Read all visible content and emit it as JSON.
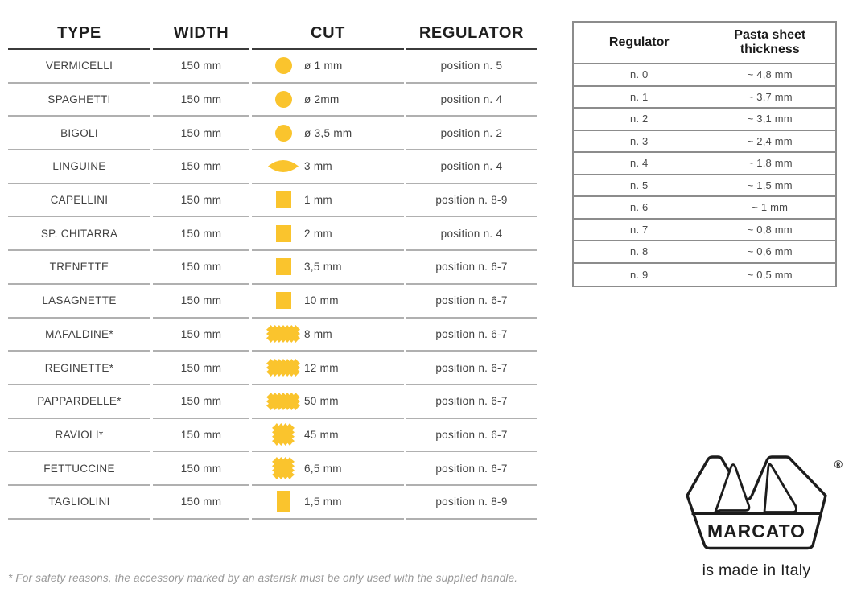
{
  "colors": {
    "accent_yellow": "#FAC42D",
    "header_line": "#3b3b3b",
    "row_line": "#b0b0b0",
    "reg_table_border": "#8c8c8c"
  },
  "main_table": {
    "headers": [
      "TYPE",
      "WIDTH",
      "CUT",
      "REGULATOR"
    ],
    "rows": [
      {
        "type": "VERMICELLI",
        "width": "150 mm",
        "icon": "circle",
        "cut": "ø 1 mm",
        "regulator": "position n. 5"
      },
      {
        "type": "SPAGHETTI",
        "width": "150 mm",
        "icon": "circle",
        "cut": "ø 2mm",
        "regulator": "position n. 4"
      },
      {
        "type": "BIGOLI",
        "width": "150 mm",
        "icon": "circle",
        "cut": "ø 3,5 mm",
        "regulator": "position n. 2"
      },
      {
        "type": "LINGUINE",
        "width": "150 mm",
        "icon": "lens",
        "cut": "3 mm",
        "regulator": "position n. 4"
      },
      {
        "type": "CAPELLINI",
        "width": "150 mm",
        "icon": "square",
        "cut": "1 mm",
        "regulator": "position n. 8-9"
      },
      {
        "type": "SP. CHITARRA",
        "width": "150 mm",
        "icon": "square",
        "cut": "2 mm",
        "regulator": "position n. 4"
      },
      {
        "type": "TRENETTE",
        "width": "150 mm",
        "icon": "square",
        "cut": "3,5 mm",
        "regulator": "position n. 6-7"
      },
      {
        "type": "LASAGNETTE",
        "width": "150 mm",
        "icon": "square",
        "cut": "10 mm",
        "regulator": "position n. 6-7"
      },
      {
        "type": "MAFALDINE*",
        "width": "150 mm",
        "icon": "ribbon-zigzag",
        "cut": "8 mm",
        "regulator": "position n. 6-7"
      },
      {
        "type": "REGINETTE*",
        "width": "150 mm",
        "icon": "ribbon-zigzag",
        "cut": "12 mm",
        "regulator": "position n. 6-7"
      },
      {
        "type": "PAPPARDELLE*",
        "width": "150 mm",
        "icon": "ribbon-zigzag",
        "cut": "50 mm",
        "regulator": "position n. 6-7"
      },
      {
        "type": "RAVIOLI*",
        "width": "150 mm",
        "icon": "square-zigzag",
        "cut": "45 mm",
        "regulator": "position n. 6-7"
      },
      {
        "type": "FETTUCCINE",
        "width": "150 mm",
        "icon": "square-zigzag",
        "cut": "6,5 mm",
        "regulator": "position n. 6-7"
      },
      {
        "type": "TAGLIOLINI",
        "width": "150 mm",
        "icon": "rect-tall",
        "cut": "1,5 mm",
        "regulator": "position n. 8-9"
      }
    ]
  },
  "regulator_table": {
    "headers": [
      "Regulator",
      "Pasta sheet\nthickness"
    ],
    "rows": [
      {
        "regulator": "n. 0",
        "thickness": "~ 4,8 mm"
      },
      {
        "regulator": "n. 1",
        "thickness": "~ 3,7 mm"
      },
      {
        "regulator": "n. 2",
        "thickness": "~ 3,1 mm"
      },
      {
        "regulator": "n. 3",
        "thickness": "~ 2,4 mm"
      },
      {
        "regulator": "n. 4",
        "thickness": "~ 1,8 mm"
      },
      {
        "regulator": "n. 5",
        "thickness": "~ 1,5 mm"
      },
      {
        "regulator": "n. 6",
        "thickness": "~ 1 mm"
      },
      {
        "regulator": "n. 7",
        "thickness": "~ 0,8 mm"
      },
      {
        "regulator": "n. 8",
        "thickness": "~ 0,6 mm"
      },
      {
        "regulator": "n. 9",
        "thickness": "~ 0,5 mm"
      }
    ]
  },
  "footnote": "* For safety reasons, the accessory marked by an asterisk must be only used with the supplied handle.",
  "logo": {
    "brand": "MARCATO",
    "registered_mark": "®",
    "tagline": "is made in Italy"
  }
}
